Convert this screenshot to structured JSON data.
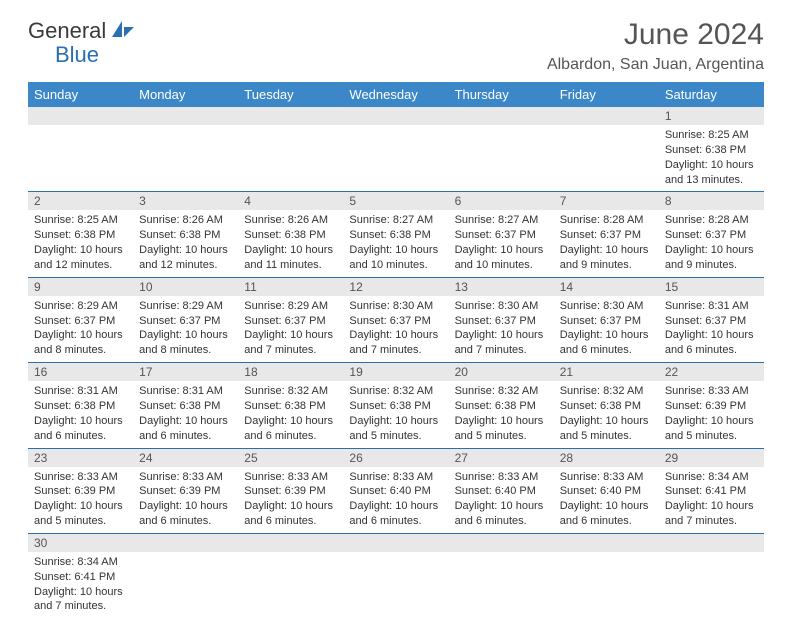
{
  "brand": {
    "general": "General",
    "blue": "Blue"
  },
  "colors": {
    "header_bg": "#3b87c8",
    "header_text": "#ffffff",
    "daynum_bg": "#e8e8e8",
    "border": "#2b6fb0",
    "title": "#555555",
    "body_text": "#333333",
    "logo_blue": "#2b6fb0"
  },
  "title": "June 2024",
  "location": "Albardon, San Juan, Argentina",
  "day_headers": [
    "Sunday",
    "Monday",
    "Tuesday",
    "Wednesday",
    "Thursday",
    "Friday",
    "Saturday"
  ],
  "weeks": [
    [
      null,
      null,
      null,
      null,
      null,
      null,
      {
        "n": "1",
        "sr": "8:25 AM",
        "ss": "6:38 PM",
        "dl": "10 hours and 13 minutes."
      }
    ],
    [
      {
        "n": "2",
        "sr": "8:25 AM",
        "ss": "6:38 PM",
        "dl": "10 hours and 12 minutes."
      },
      {
        "n": "3",
        "sr": "8:26 AM",
        "ss": "6:38 PM",
        "dl": "10 hours and 12 minutes."
      },
      {
        "n": "4",
        "sr": "8:26 AM",
        "ss": "6:38 PM",
        "dl": "10 hours and 11 minutes."
      },
      {
        "n": "5",
        "sr": "8:27 AM",
        "ss": "6:38 PM",
        "dl": "10 hours and 10 minutes."
      },
      {
        "n": "6",
        "sr": "8:27 AM",
        "ss": "6:37 PM",
        "dl": "10 hours and 10 minutes."
      },
      {
        "n": "7",
        "sr": "8:28 AM",
        "ss": "6:37 PM",
        "dl": "10 hours and 9 minutes."
      },
      {
        "n": "8",
        "sr": "8:28 AM",
        "ss": "6:37 PM",
        "dl": "10 hours and 9 minutes."
      }
    ],
    [
      {
        "n": "9",
        "sr": "8:29 AM",
        "ss": "6:37 PM",
        "dl": "10 hours and 8 minutes."
      },
      {
        "n": "10",
        "sr": "8:29 AM",
        "ss": "6:37 PM",
        "dl": "10 hours and 8 minutes."
      },
      {
        "n": "11",
        "sr": "8:29 AM",
        "ss": "6:37 PM",
        "dl": "10 hours and 7 minutes."
      },
      {
        "n": "12",
        "sr": "8:30 AM",
        "ss": "6:37 PM",
        "dl": "10 hours and 7 minutes."
      },
      {
        "n": "13",
        "sr": "8:30 AM",
        "ss": "6:37 PM",
        "dl": "10 hours and 7 minutes."
      },
      {
        "n": "14",
        "sr": "8:30 AM",
        "ss": "6:37 PM",
        "dl": "10 hours and 6 minutes."
      },
      {
        "n": "15",
        "sr": "8:31 AM",
        "ss": "6:37 PM",
        "dl": "10 hours and 6 minutes."
      }
    ],
    [
      {
        "n": "16",
        "sr": "8:31 AM",
        "ss": "6:38 PM",
        "dl": "10 hours and 6 minutes."
      },
      {
        "n": "17",
        "sr": "8:31 AM",
        "ss": "6:38 PM",
        "dl": "10 hours and 6 minutes."
      },
      {
        "n": "18",
        "sr": "8:32 AM",
        "ss": "6:38 PM",
        "dl": "10 hours and 6 minutes."
      },
      {
        "n": "19",
        "sr": "8:32 AM",
        "ss": "6:38 PM",
        "dl": "10 hours and 5 minutes."
      },
      {
        "n": "20",
        "sr": "8:32 AM",
        "ss": "6:38 PM",
        "dl": "10 hours and 5 minutes."
      },
      {
        "n": "21",
        "sr": "8:32 AM",
        "ss": "6:38 PM",
        "dl": "10 hours and 5 minutes."
      },
      {
        "n": "22",
        "sr": "8:33 AM",
        "ss": "6:39 PM",
        "dl": "10 hours and 5 minutes."
      }
    ],
    [
      {
        "n": "23",
        "sr": "8:33 AM",
        "ss": "6:39 PM",
        "dl": "10 hours and 5 minutes."
      },
      {
        "n": "24",
        "sr": "8:33 AM",
        "ss": "6:39 PM",
        "dl": "10 hours and 6 minutes."
      },
      {
        "n": "25",
        "sr": "8:33 AM",
        "ss": "6:39 PM",
        "dl": "10 hours and 6 minutes."
      },
      {
        "n": "26",
        "sr": "8:33 AM",
        "ss": "6:40 PM",
        "dl": "10 hours and 6 minutes."
      },
      {
        "n": "27",
        "sr": "8:33 AM",
        "ss": "6:40 PM",
        "dl": "10 hours and 6 minutes."
      },
      {
        "n": "28",
        "sr": "8:33 AM",
        "ss": "6:40 PM",
        "dl": "10 hours and 6 minutes."
      },
      {
        "n": "29",
        "sr": "8:34 AM",
        "ss": "6:41 PM",
        "dl": "10 hours and 7 minutes."
      }
    ],
    [
      {
        "n": "30",
        "sr": "8:34 AM",
        "ss": "6:41 PM",
        "dl": "10 hours and 7 minutes."
      },
      null,
      null,
      null,
      null,
      null,
      null
    ]
  ],
  "labels": {
    "sunrise": "Sunrise: ",
    "sunset": "Sunset: ",
    "daylight": "Daylight: "
  }
}
